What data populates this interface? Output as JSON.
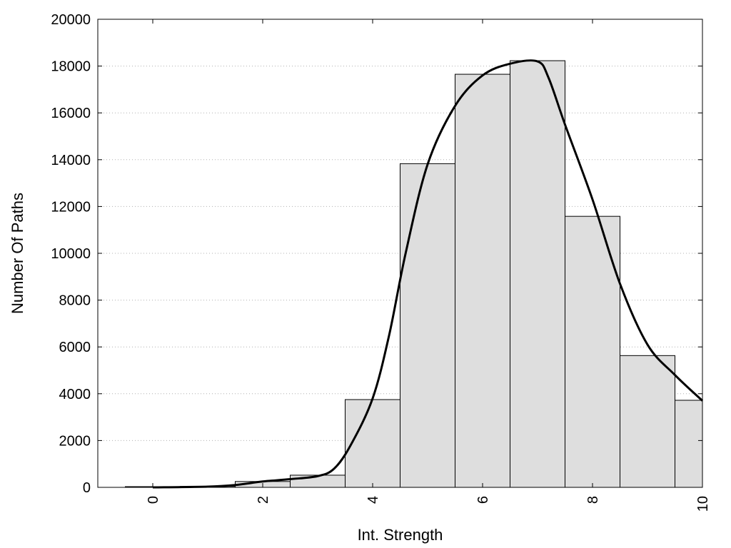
{
  "chart_data": {
    "type": "bar",
    "title": "",
    "xlabel": "Int. Strength",
    "ylabel": "Number Of Paths",
    "xlim": [
      -1,
      10
    ],
    "ylim": [
      0,
      20000
    ],
    "grid": "horizontal dotted",
    "x_ticks": [
      0,
      2,
      4,
      6,
      8,
      10
    ],
    "y_ticks": [
      0,
      2000,
      4000,
      6000,
      8000,
      10000,
      12000,
      14000,
      16000,
      18000,
      20000
    ],
    "bar_width": 1,
    "categories": [
      0,
      1,
      2,
      3,
      4,
      5,
      6,
      7,
      8,
      9,
      10
    ],
    "values": [
      30,
      40,
      250,
      520,
      3750,
      13830,
      17650,
      18230,
      11580,
      5630,
      3720
    ],
    "bar_color": "#dedede",
    "curve": {
      "x": [
        0,
        1,
        1.5,
        2,
        2.5,
        3,
        3.3,
        3.6,
        4,
        4.3,
        4.6,
        5,
        5.5,
        6,
        6.5,
        7,
        7.2,
        7.5,
        8,
        8.5,
        9,
        9.5,
        10
      ],
      "y": [
        0,
        30,
        100,
        250,
        350,
        480,
        800,
        1800,
        3800,
        6500,
        10000,
        13800,
        16300,
        17600,
        18100,
        18200,
        17500,
        15500,
        12300,
        8700,
        6100,
        4800,
        3700
      ]
    }
  }
}
